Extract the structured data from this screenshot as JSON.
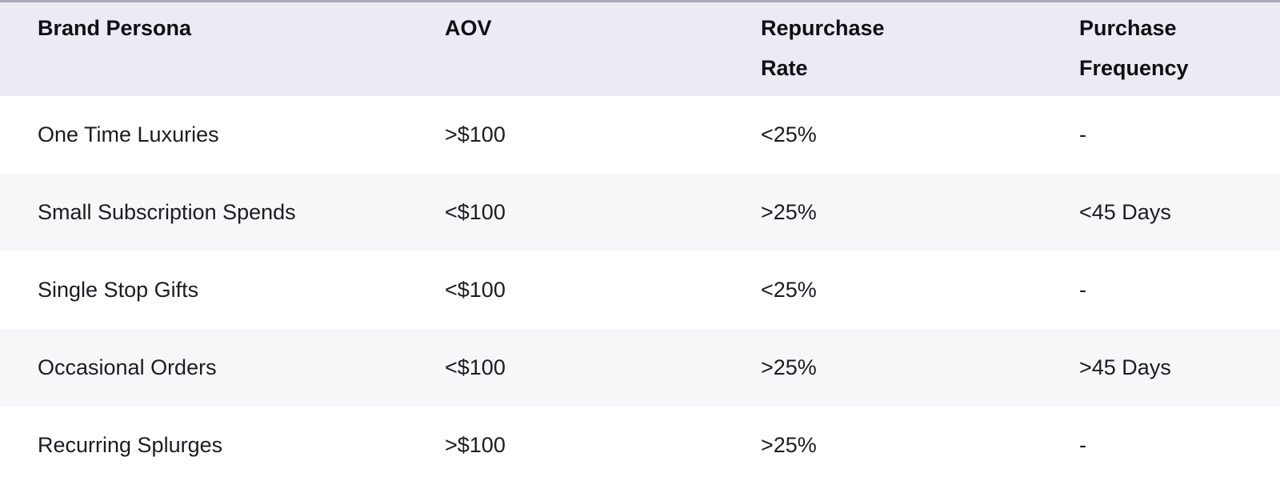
{
  "colors": {
    "header_bg": "#ECEAF2",
    "row_bg": "#FFFFFF",
    "row_alt_bg": "#F7F7F9",
    "top_strip": "#ACAAB8",
    "header_text": "#0F0F14",
    "body_text": "#1C1C21"
  },
  "chart_data": {
    "type": "table",
    "title": "",
    "columns": [
      "Brand Persona",
      "AOV",
      "Repurchase Rate",
      "Purchase Frequency"
    ],
    "rows": [
      [
        "One Time Luxuries",
        ">$100",
        "<25%",
        "-"
      ],
      [
        "Small Subscription Spends",
        "<$100",
        ">25%",
        "<45 Days"
      ],
      [
        "Single Stop Gifts",
        "<$100",
        "<25%",
        "-"
      ],
      [
        "Occasional Orders",
        "<$100",
        ">25%",
        ">45 Days"
      ],
      [
        "Recurring Splurges",
        ">$100",
        ">25%",
        "-"
      ]
    ]
  }
}
